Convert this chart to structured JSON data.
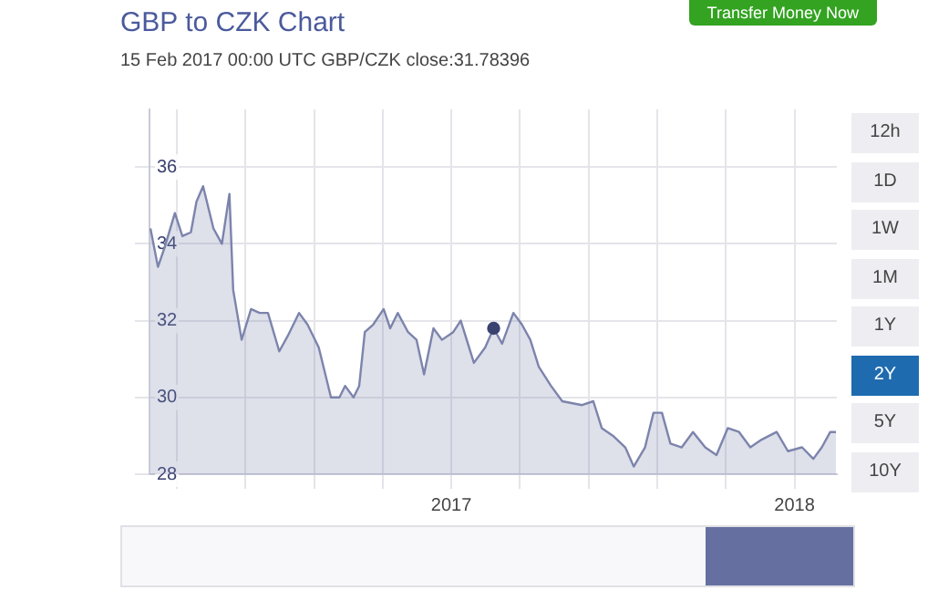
{
  "chart_data": {
    "type": "area",
    "title": "GBP to CZK Chart",
    "subtitle": "15 Feb 2017 00:00 UTC GBP/CZK close:31.78396",
    "x": [
      "2016-02-16",
      "2016-02-24",
      "2016-03-02",
      "2016-03-13",
      "2016-03-21",
      "2016-03-30",
      "2016-04-05",
      "2016-04-12",
      "2016-04-17",
      "2016-04-23",
      "2016-05-02",
      "2016-05-10",
      "2016-05-14",
      "2016-05-23",
      "2016-06-02",
      "2016-06-11",
      "2016-06-20",
      "2016-07-02",
      "2016-07-11",
      "2016-07-23",
      "2016-08-01",
      "2016-08-13",
      "2016-08-26",
      "2016-09-04",
      "2016-09-10",
      "2016-09-19",
      "2016-09-25",
      "2016-10-01",
      "2016-10-10",
      "2016-10-21",
      "2016-10-28",
      "2016-11-05",
      "2016-11-16",
      "2016-11-25",
      "2016-12-03",
      "2016-12-13",
      "2016-12-22",
      "2017-01-03",
      "2017-01-11",
      "2017-01-25",
      "2017-02-06",
      "2017-02-15",
      "2017-02-24",
      "2017-03-08",
      "2017-03-17",
      "2017-03-26",
      "2017-04-04",
      "2017-04-17",
      "2017-04-29",
      "2017-05-20",
      "2017-06-01",
      "2017-06-10",
      "2017-06-22",
      "2017-07-05",
      "2017-07-14",
      "2017-07-26",
      "2017-08-04",
      "2017-08-13",
      "2017-08-22",
      "2017-09-03",
      "2017-09-15",
      "2017-09-28",
      "2017-10-10",
      "2017-10-22",
      "2017-11-03",
      "2017-11-15",
      "2017-11-27",
      "2017-12-13",
      "2017-12-25",
      "2018-01-09",
      "2018-01-21",
      "2018-01-30",
      "2018-02-08",
      "2018-02-14"
    ],
    "series": [
      {
        "type": "scatter",
        "color": "#3a4270",
        "x": [
          "2017-02-15"
        ],
        "values": [
          31.8
        ]
      },
      {
        "color": "#7c84ac",
        "values": [
          34.4,
          33.4,
          33.9,
          34.8,
          34.2,
          34.3,
          35.1,
          35.5,
          35.0,
          34.4,
          34.0,
          35.3,
          32.8,
          31.5,
          32.3,
          32.2,
          32.2,
          31.2,
          31.6,
          32.2,
          31.9,
          31.3,
          30.0,
          30.0,
          30.3,
          30.0,
          30.3,
          31.7,
          31.9,
          32.3,
          31.8,
          32.2,
          31.7,
          31.5,
          30.6,
          31.8,
          31.5,
          31.7,
          32.0,
          30.9,
          31.3,
          31.8,
          31.4,
          32.2,
          31.9,
          31.5,
          30.8,
          30.3,
          29.9,
          29.8,
          29.9,
          29.2,
          29.0,
          28.7,
          28.2,
          28.7,
          29.6,
          29.6,
          28.8,
          28.7,
          29.1,
          28.7,
          28.5,
          29.2,
          29.1,
          28.7,
          28.9,
          29.1,
          28.6,
          28.7,
          28.4,
          28.7,
          29.1,
          29.1
        ]
      }
    ],
    "xlim": [
      "2016-02-15",
      "2018-02-15"
    ],
    "xticks": [
      {
        "value": "2016-03-15",
        "label": null
      },
      {
        "value": "2016-05-27",
        "label": null
      },
      {
        "value": "2016-08-08",
        "label": null
      },
      {
        "value": "2016-10-20",
        "label": null
      },
      {
        "value": "2017-01-01",
        "label": "2017"
      },
      {
        "value": "2017-03-15",
        "label": null
      },
      {
        "value": "2017-05-27",
        "label": null
      },
      {
        "value": "2017-08-08",
        "label": null
      },
      {
        "value": "2017-10-20",
        "label": null
      },
      {
        "value": "2018-01-01",
        "label": "2018"
      }
    ],
    "ylim": [
      28,
      37.5
    ],
    "yticks": [
      28,
      30,
      32,
      34,
      36
    ],
    "grid": true,
    "legend": false,
    "annotations": [
      "12h",
      "1D",
      "1W",
      "1M",
      "1Y",
      "2Y",
      "5Y",
      "10Y",
      "Transfer Money Now"
    ]
  }
}
